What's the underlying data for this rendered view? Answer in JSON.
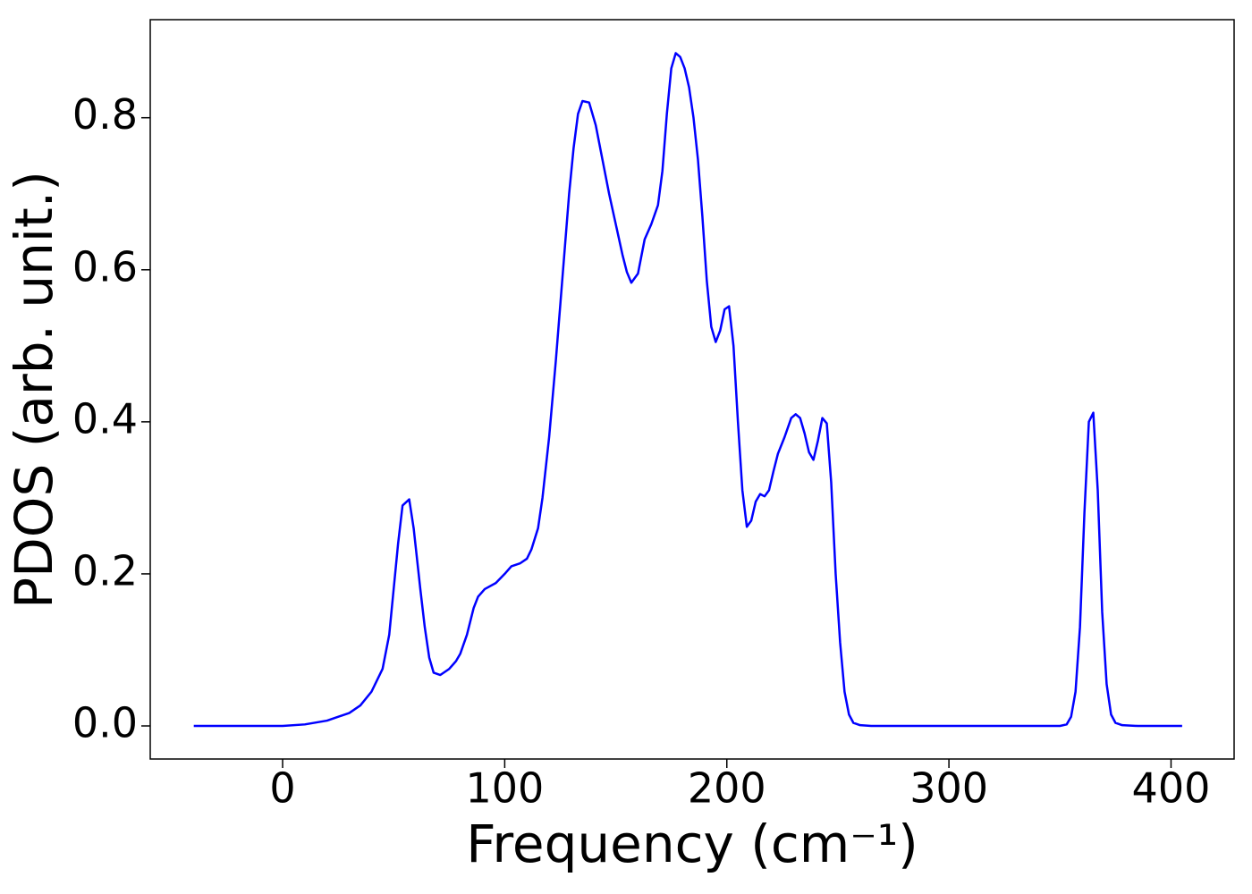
{
  "chart_data": {
    "type": "line",
    "xlabel": "Frequency (cm⁻¹)",
    "ylabel": "PDOS (arb. unit.)",
    "x": [
      -40,
      0,
      10,
      20,
      30,
      35,
      40,
      45,
      48,
      50,
      52,
      54,
      57,
      59,
      62,
      64,
      66,
      68,
      71,
      75,
      78,
      80,
      83,
      86,
      88,
      91,
      96,
      100,
      103,
      107,
      110,
      112,
      115,
      117,
      120,
      123,
      126,
      129,
      131,
      133,
      135,
      138,
      141,
      144,
      147,
      150,
      153,
      155,
      157,
      160,
      163,
      166,
      169,
      171,
      173,
      175,
      177,
      179,
      181,
      183,
      185,
      187,
      189,
      191,
      193,
      195,
      197,
      199,
      201,
      203,
      205,
      207,
      209,
      211,
      213,
      215,
      217,
      219,
      221,
      223,
      226,
      229,
      231,
      233,
      235,
      237,
      239,
      241,
      243,
      245,
      247,
      249,
      251,
      253,
      255,
      257,
      260,
      265,
      300,
      350,
      353,
      355,
      357,
      359,
      361,
      363,
      365,
      367,
      369,
      371,
      373,
      375,
      378,
      385,
      405
    ],
    "series": [
      {
        "name": "PDOS",
        "color": "#0000ff",
        "values": [
          0,
          0,
          0.002,
          0.007,
          0.017,
          0.027,
          0.045,
          0.075,
          0.12,
          0.18,
          0.24,
          0.29,
          0.298,
          0.26,
          0.18,
          0.13,
          0.09,
          0.07,
          0.067,
          0.075,
          0.085,
          0.095,
          0.12,
          0.155,
          0.17,
          0.18,
          0.188,
          0.2,
          0.21,
          0.214,
          0.22,
          0.232,
          0.26,
          0.3,
          0.38,
          0.48,
          0.59,
          0.7,
          0.76,
          0.805,
          0.822,
          0.82,
          0.79,
          0.745,
          0.7,
          0.66,
          0.62,
          0.597,
          0.583,
          0.595,
          0.64,
          0.66,
          0.685,
          0.73,
          0.805,
          0.865,
          0.885,
          0.88,
          0.865,
          0.84,
          0.8,
          0.745,
          0.67,
          0.585,
          0.525,
          0.505,
          0.52,
          0.548,
          0.552,
          0.5,
          0.4,
          0.31,
          0.262,
          0.27,
          0.295,
          0.305,
          0.302,
          0.31,
          0.335,
          0.358,
          0.38,
          0.405,
          0.41,
          0.405,
          0.385,
          0.36,
          0.35,
          0.375,
          0.405,
          0.398,
          0.32,
          0.2,
          0.11,
          0.045,
          0.015,
          0.004,
          0.001,
          0,
          0,
          0,
          0.002,
          0.012,
          0.045,
          0.13,
          0.28,
          0.4,
          0.412,
          0.31,
          0.15,
          0.055,
          0.015,
          0.004,
          0.001,
          0,
          0
        ]
      }
    ],
    "xlim": [
      -59.6,
      428.4
    ],
    "xticks": [
      0,
      100,
      200,
      300,
      400
    ],
    "ylim": [
      -0.0435,
      0.929
    ],
    "yticks": [
      {
        "value": 0,
        "label": "0.0"
      },
      0.2,
      0.4,
      0.6,
      0.8
    ]
  }
}
